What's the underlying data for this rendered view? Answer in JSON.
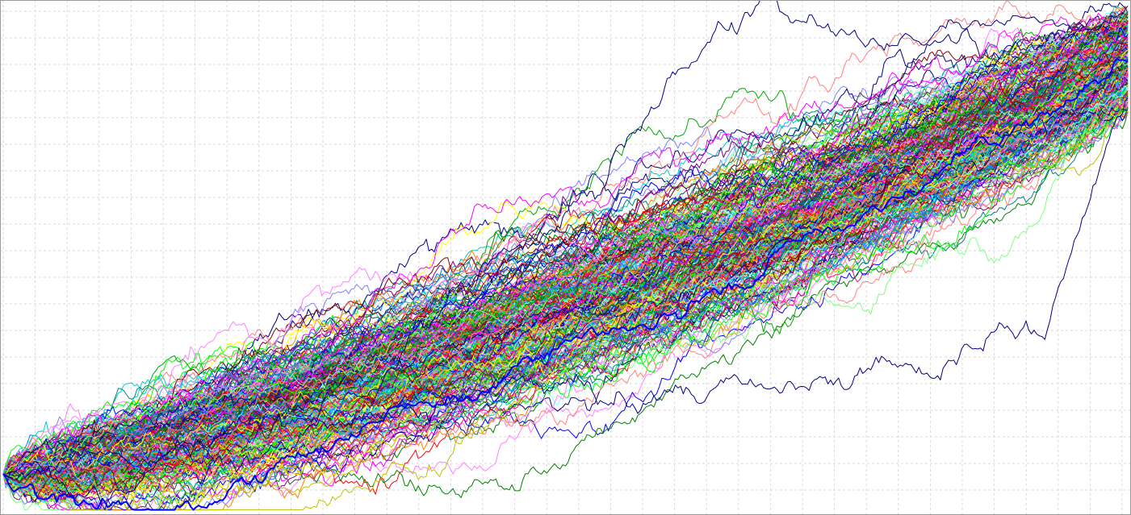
{
  "chart_data": {
    "type": "line",
    "title": "",
    "xlabel": "",
    "ylabel": "",
    "grid": true,
    "legend": "none",
    "xlim": [
      0,
      420
    ],
    "ylim": [
      0,
      100
    ],
    "steps": 420,
    "path_count": 320,
    "start_value": 8,
    "end_value_range": [
      78,
      98
    ],
    "background": "#ffffff",
    "grid_color": "#d9d9d9",
    "palette": [
      "#ff0000",
      "#00aa00",
      "#0000ff",
      "#ff00ff",
      "#00cccc",
      "#ffff00",
      "#000080",
      "#800000",
      "#008000",
      "#ff8080",
      "#80ff80",
      "#8080ff",
      "#ff80ff",
      "#80ffff",
      "#c0c000",
      "#008080",
      "#800080",
      "#ff8000",
      "#00ff00",
      "#0080ff",
      "#ff0080",
      "#404040"
    ],
    "highlighted_paths": [
      {
        "name": "",
        "color": "#000080",
        "peak_value": 93
      },
      {
        "name": "",
        "color": "#000080",
        "low_end_value": 41
      },
      {
        "name": "",
        "color": "#0000ff",
        "bold": true
      }
    ]
  }
}
